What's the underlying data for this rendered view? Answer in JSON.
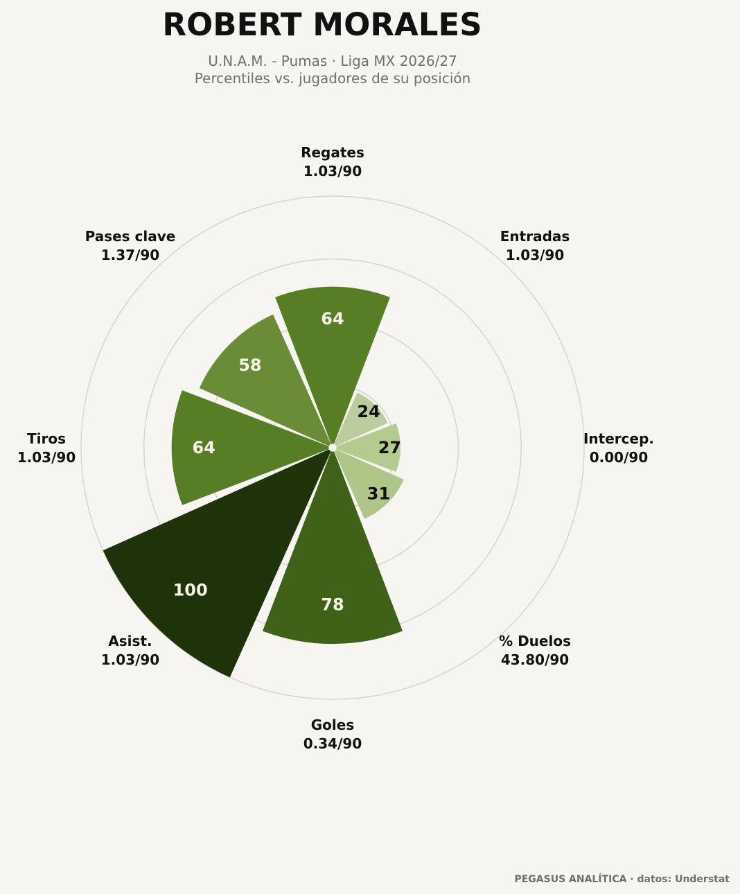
{
  "chart_data": {
    "type": "polar-bar",
    "title": "ROBERT MORALES",
    "subtitle_line1": "U.N.A.M. - Pumas · Liga MX 2026/27",
    "subtitle_line2": "Percentiles vs. jugadores de su posición",
    "rmax": 100,
    "start_angle_deg": 90,
    "direction": "clockwise",
    "grid_rings": [
      25,
      50,
      75,
      100
    ],
    "categories": [
      {
        "name": "Regates",
        "stat": "1.03/90",
        "percentile": 64,
        "color": "#577e25",
        "label_color": "#f4f1e6"
      },
      {
        "name": "Entradas",
        "stat": "1.03/90",
        "percentile": 24,
        "color": "#bccd9d",
        "label_color": "#111111"
      },
      {
        "name": "Intercep.",
        "stat": "0.00/90",
        "percentile": 27,
        "color": "#b4cb8f",
        "label_color": "#111111"
      },
      {
        "name": "% Duelos",
        "stat": "43.80/90",
        "percentile": 31,
        "color": "#aec788",
        "label_color": "#111111"
      },
      {
        "name": "Goles",
        "stat": "0.34/90",
        "percentile": 78,
        "color": "#3f6118",
        "label_color": "#f4f1e6"
      },
      {
        "name": "Asist.",
        "stat": "1.03/90",
        "percentile": 100,
        "color": "#1e3309",
        "label_color": "#f4f1e6"
      },
      {
        "name": "Tiros",
        "stat": "1.03/90",
        "percentile": 64,
        "color": "#577e25",
        "label_color": "#f4f1e6"
      },
      {
        "name": "Pases clave",
        "stat": "1.37/90",
        "percentile": 58,
        "color": "#6a8c37",
        "label_color": "#f4f1e6"
      }
    ],
    "grid": true,
    "background": "#f6f5f1"
  },
  "footer": "PEGASUS ANALÍTICA · datos: Understat"
}
